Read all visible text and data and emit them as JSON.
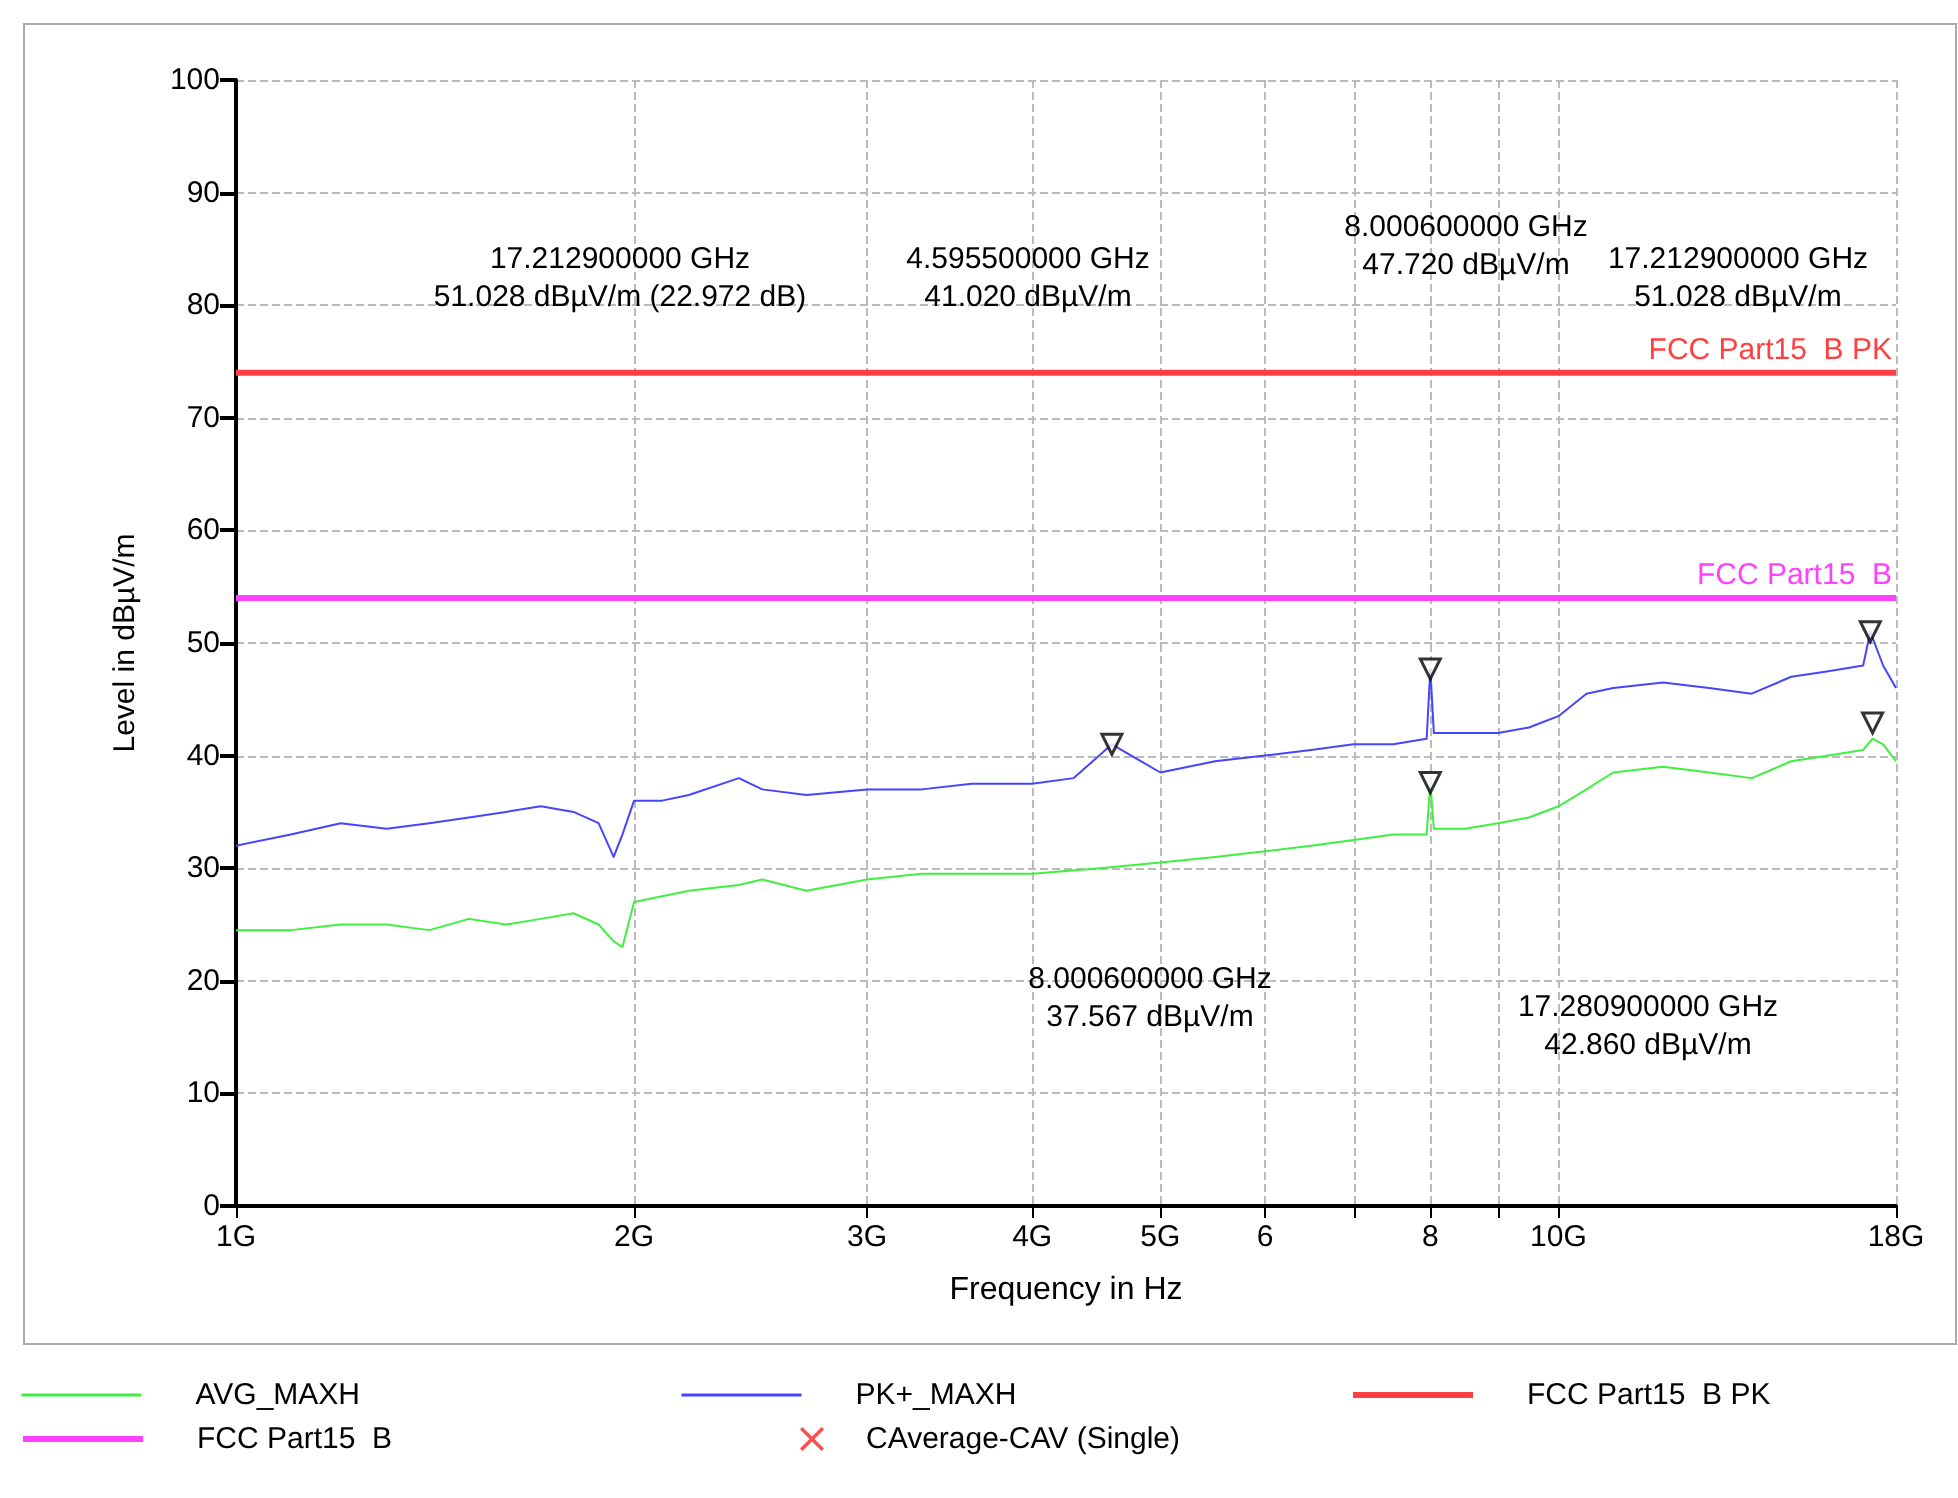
{
  "chart_data": {
    "type": "line",
    "xlabel": "Frequency in Hz",
    "ylabel": "Level in dBµV/m",
    "xlim": [
      1,
      18
    ],
    "ylim": [
      0,
      100
    ],
    "xticks": [
      {
        "value": 1,
        "label": "1G"
      },
      {
        "value": 2,
        "label": "2G"
      },
      {
        "value": 3,
        "label": "3G"
      },
      {
        "value": 4,
        "label": "4G"
      },
      {
        "value": 5,
        "label": "5G"
      },
      {
        "value": 6,
        "label": "6"
      },
      {
        "value": 7,
        "label": null
      },
      {
        "value": 8,
        "label": "8"
      },
      {
        "value": 9,
        "label": null
      },
      {
        "value": 10,
        "label": "10G"
      },
      {
        "value": 18,
        "label": "18G"
      }
    ],
    "yticks": [
      0,
      10,
      20,
      30,
      40,
      50,
      60,
      70,
      80,
      90,
      100
    ],
    "log": "x",
    "grid": true,
    "legend": "bottom",
    "marker": "none",
    "line_style": "solid",
    "series": [
      {
        "name": "AVG_MAXH",
        "color": "#40f040",
        "x": [
          1.0,
          1.1,
          1.2,
          1.3,
          1.4,
          1.5,
          1.6,
          1.7,
          1.8,
          1.88,
          1.93,
          1.96,
          2.0,
          2.1,
          2.2,
          2.4,
          2.5,
          2.7,
          3.0,
          3.3,
          3.5,
          4.0,
          4.5,
          5.0,
          5.5,
          6.0,
          6.5,
          7.0,
          7.5,
          7.95,
          8.0006,
          8.05,
          8.5,
          9.0,
          9.5,
          10.0,
          10.5,
          11.0,
          12.0,
          13.0,
          14.0,
          15.0,
          16.0,
          17.0,
          17.2809,
          17.6,
          18.0
        ],
        "values": [
          24.5,
          24.5,
          25,
          25,
          24.5,
          25.5,
          25,
          25.5,
          26,
          25,
          23.5,
          23,
          27,
          27.5,
          28,
          28.5,
          29,
          28,
          29,
          29.5,
          29.5,
          29.5,
          30,
          30.5,
          31,
          31.5,
          32,
          32.5,
          33,
          33,
          37.6,
          33.5,
          33.5,
          34,
          34.5,
          35.5,
          37,
          38.5,
          39,
          38.5,
          38,
          39.5,
          40,
          40.5,
          41.5,
          41,
          39.5
        ]
      },
      {
        "name": "PK+_MAXH",
        "color": "#4545ff",
        "x": [
          1.0,
          1.1,
          1.2,
          1.3,
          1.4,
          1.5,
          1.6,
          1.7,
          1.8,
          1.88,
          1.93,
          1.96,
          2.0,
          2.1,
          2.2,
          2.4,
          2.5,
          2.7,
          3.0,
          3.3,
          3.6,
          4.0,
          4.3,
          4.5955,
          5.0,
          5.5,
          6.0,
          6.5,
          7.0,
          7.5,
          7.95,
          8.0006,
          8.05,
          8.5,
          9.0,
          9.5,
          10.0,
          10.5,
          11.0,
          12.0,
          13.0,
          14.0,
          15.0,
          16.0,
          17.0,
          17.2129,
          17.6,
          18.0
        ],
        "values": [
          32,
          33,
          34,
          33.5,
          34,
          34.5,
          35,
          35.5,
          35,
          34,
          31,
          33,
          36,
          36,
          36.5,
          38,
          37,
          36.5,
          37,
          37,
          37.5,
          37.5,
          38,
          41.0,
          38.5,
          39.5,
          40,
          40.5,
          41,
          41,
          41.5,
          47.7,
          42,
          42,
          42,
          42.5,
          43.5,
          45.5,
          46,
          46.5,
          46,
          45.5,
          47,
          47.5,
          48,
          51.0,
          48,
          46
        ]
      },
      {
        "type": "scatter",
        "color": "#000000",
        "marker": "triangle",
        "x": [
          4.5955,
          8.0006,
          17.2129,
          8.0006,
          17.2809
        ],
        "values": [
          41.0,
          47.7,
          51.0,
          37.6,
          42.9
        ]
      },
      {
        "name": "CAverage-CAV (Single)",
        "type": "scatter",
        "color": "#ff2020",
        "marker": "cross"
      }
    ],
    "ref_lines": [
      {
        "axis": "y",
        "value": 74,
        "label": "FCC Part15  B PK",
        "color": "#ff4040"
      },
      {
        "axis": "y",
        "value": 54,
        "label": "FCC Part15  B",
        "color": "#ff40ff"
      }
    ],
    "annotations": [
      "17.212900000 GHz\n51.028 dBµV/m (22.972 dB)",
      "4.595500000 GHz\n41.020 dBµV/m",
      "8.000600000 GHz\n47.720 dBµV/m",
      "17.212900000 GHz\n51.028 dBµV/m",
      "8.000600000 GHz\n37.567 dBµV/m",
      "17.280900000 GHz\n42.860 dBµV/m"
    ]
  }
}
